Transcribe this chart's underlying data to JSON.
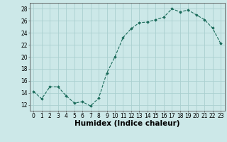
{
  "x": [
    0,
    1,
    2,
    3,
    4,
    5,
    6,
    7,
    8,
    9,
    10,
    11,
    12,
    13,
    14,
    15,
    16,
    17,
    18,
    19,
    20,
    21,
    22,
    23
  ],
  "y": [
    14.2,
    13.0,
    15.0,
    15.0,
    13.5,
    12.3,
    12.5,
    11.8,
    13.1,
    17.3,
    20.0,
    23.2,
    24.7,
    25.7,
    25.8,
    26.2,
    26.6,
    28.0,
    27.5,
    27.8,
    27.0,
    26.2,
    24.8,
    22.2
  ],
  "xlabel": "Humidex (Indice chaleur)",
  "ylim": [
    11,
    29
  ],
  "xlim": [
    -0.5,
    23.5
  ],
  "yticks": [
    12,
    14,
    16,
    18,
    20,
    22,
    24,
    26,
    28
  ],
  "xticks": [
    0,
    1,
    2,
    3,
    4,
    5,
    6,
    7,
    8,
    9,
    10,
    11,
    12,
    13,
    14,
    15,
    16,
    17,
    18,
    19,
    20,
    21,
    22,
    23
  ],
  "line_color": "#1a6b5a",
  "marker": "D",
  "marker_size": 1.8,
  "bg_color": "#cce8e8",
  "grid_color": "#aacfcf",
  "spine_color": "#555555",
  "tick_label_fontsize": 5.5,
  "xlabel_fontsize": 7.5,
  "xlabel_fontweight": "bold"
}
